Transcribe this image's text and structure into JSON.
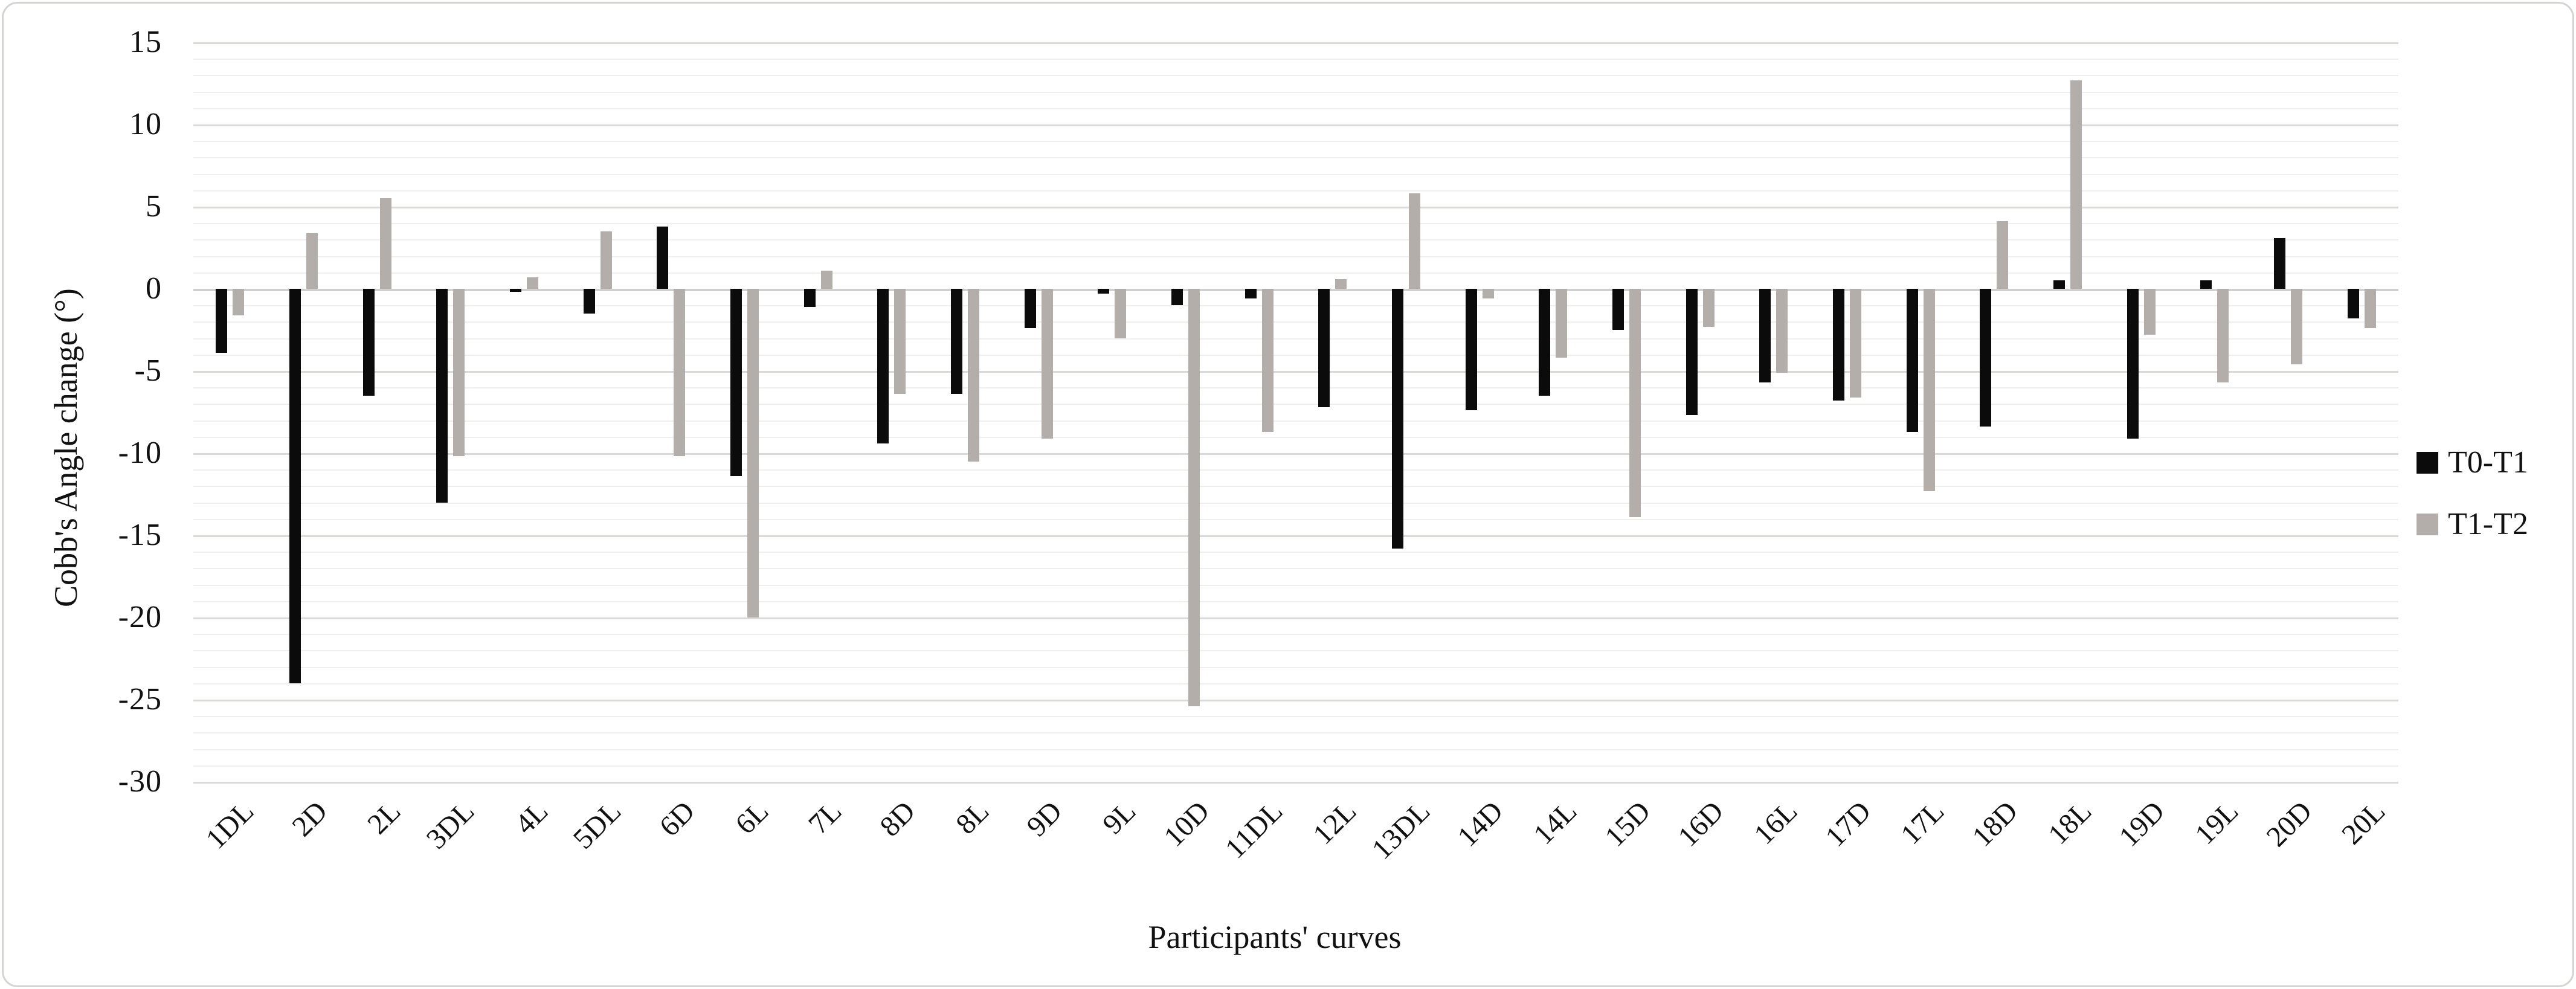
{
  "figure": {
    "y_axis_title": "Cobb's Angle change (°)",
    "x_axis_title": "Participants' curves",
    "legend": {
      "entries": [
        {
          "label": "T0-T1",
          "color": "#0b0b0b"
        },
        {
          "label": "T1-T2",
          "color": "#b3aeaa"
        }
      ]
    }
  },
  "chart_data": {
    "type": "bar",
    "title": "",
    "xlabel": "Participants' curves",
    "ylabel": "Cobb's Angle change (°)",
    "ylim": [
      -30,
      15
    ],
    "y_ticks": [
      15,
      10,
      5,
      0,
      -5,
      -10,
      -15,
      -20,
      -25,
      -30
    ],
    "minor_grid_step": 1,
    "major_grid_step": 5,
    "grid": true,
    "legend_position": "right",
    "categories": [
      "1DL",
      "2D",
      "2L",
      "3DL",
      "4L",
      "5DL",
      "6D",
      "6L",
      "7L",
      "8D",
      "8L",
      "9D",
      "9L",
      "10D",
      "11DL",
      "12L",
      "13DL",
      "14D",
      "14L",
      "15D",
      "16D",
      "16L",
      "17D",
      "17L",
      "18D",
      "18L",
      "19D",
      "19L",
      "20D",
      "20L"
    ],
    "series": [
      {
        "name": "T0-T1",
        "color": "#0b0b0b",
        "values": [
          -3.9,
          -24.0,
          -6.5,
          -13.0,
          -0.2,
          -1.5,
          3.8,
          -11.4,
          -1.1,
          -9.4,
          -6.4,
          -2.4,
          -0.3,
          -1.0,
          -0.6,
          -7.2,
          -15.8,
          -7.4,
          -6.5,
          -2.5,
          -7.7,
          -5.7,
          -6.8,
          -8.7,
          -8.4,
          0.5,
          -9.1,
          0.5,
          3.1,
          -1.8
        ]
      },
      {
        "name": "T1-T2",
        "color": "#b3aeaa",
        "values": [
          -1.6,
          3.4,
          5.5,
          -10.2,
          0.7,
          3.5,
          -10.2,
          -20.0,
          1.1,
          -6.4,
          -10.5,
          -9.1,
          -3.0,
          -25.4,
          -8.7,
          0.6,
          5.8,
          -0.6,
          -4.2,
          -13.9,
          -2.3,
          -5.1,
          -6.6,
          -12.3,
          4.1,
          12.7,
          -2.8,
          -5.7,
          -4.6,
          -2.4
        ]
      }
    ]
  }
}
